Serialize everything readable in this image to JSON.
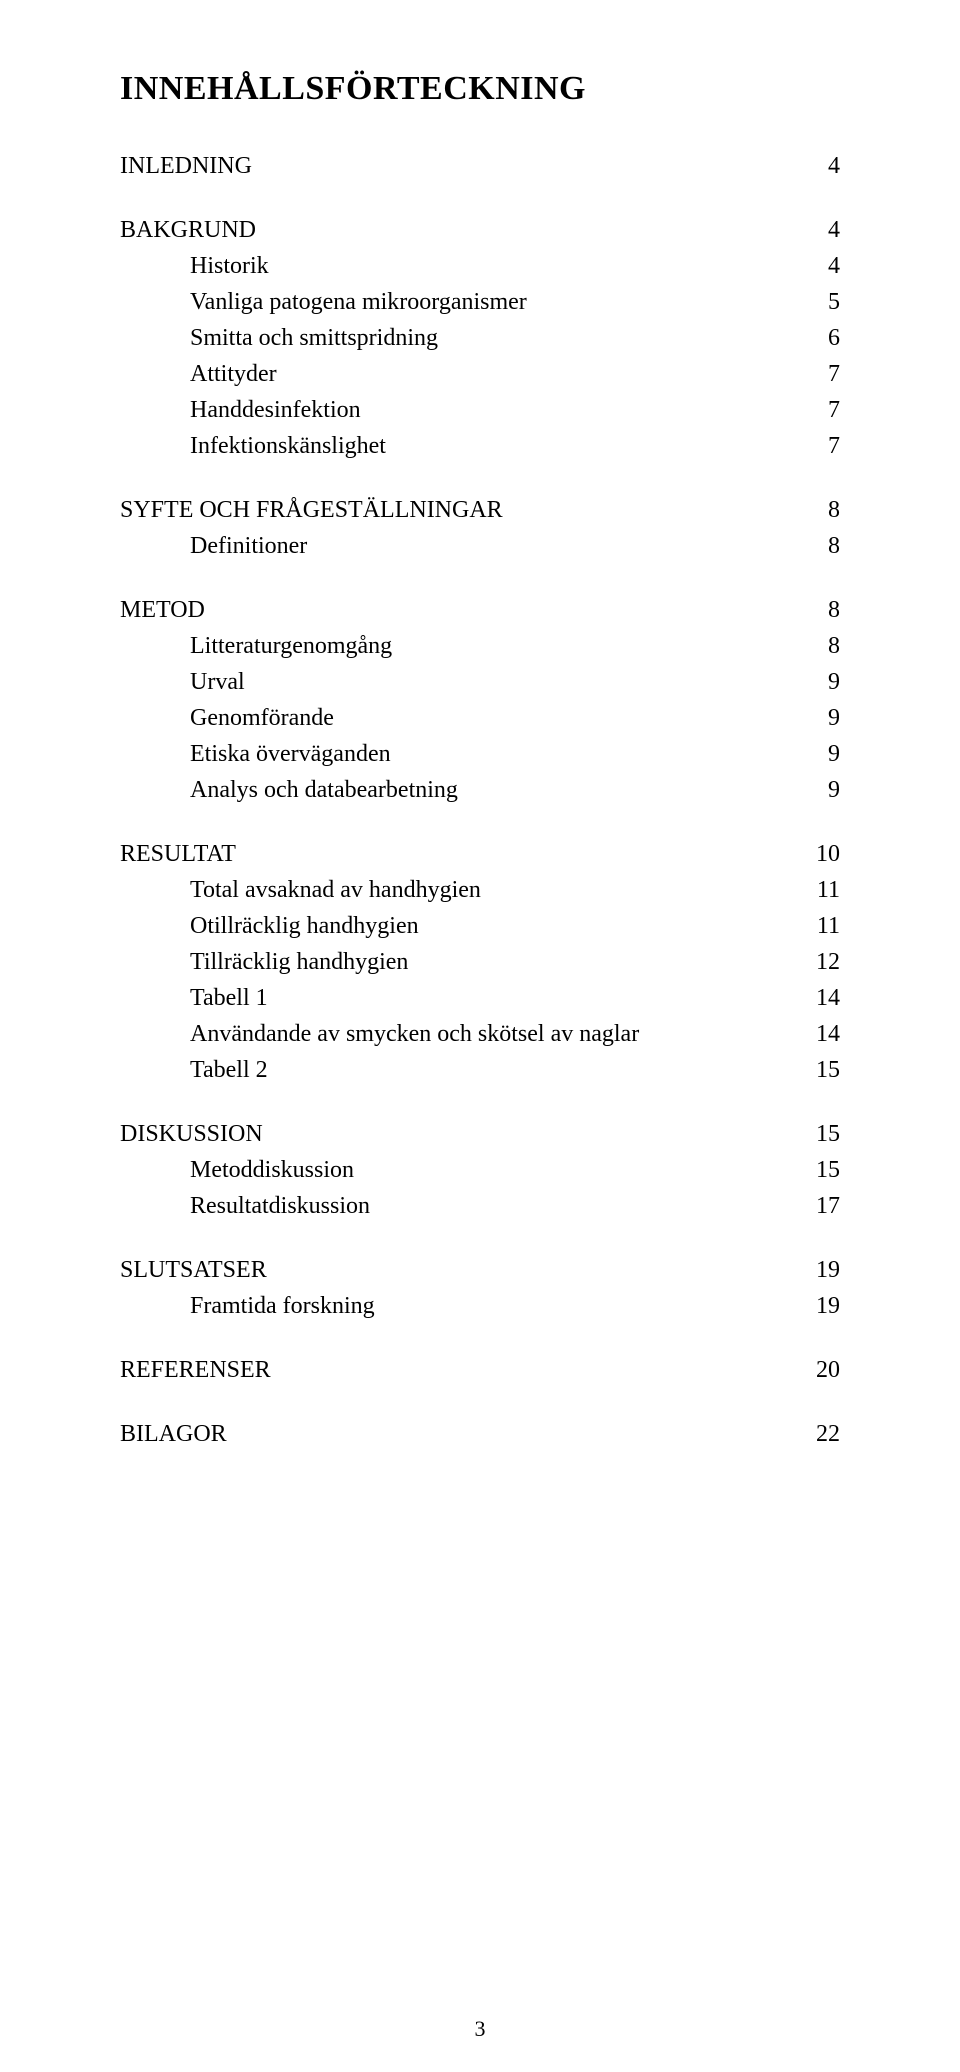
{
  "title": "INNEHÅLLSFÖRTECKNING",
  "sections": [
    {
      "head": "INLEDNING",
      "page": "4",
      "subs": []
    },
    {
      "head": "BAKGRUND",
      "page": "4",
      "subs": [
        {
          "label": "Historik",
          "page": "4"
        },
        {
          "label": "Vanliga patogena mikroorganismer",
          "page": "5"
        },
        {
          "label": "Smitta och smittspridning",
          "page": "6"
        },
        {
          "label": "Attityder",
          "page": "7"
        },
        {
          "label": "Handdesinfektion",
          "page": "7"
        },
        {
          "label": "Infektionskänslighet",
          "page": "7"
        }
      ]
    },
    {
      "head": "SYFTE OCH FRÅGESTÄLLNINGAR",
      "page": "8",
      "subs": [
        {
          "label": "Definitioner",
          "page": "8"
        }
      ]
    },
    {
      "head": "METOD",
      "page": "8",
      "subs": [
        {
          "label": "Litteraturgenomgång",
          "page": "8"
        },
        {
          "label": "Urval",
          "page": "9"
        },
        {
          "label": "Genomförande",
          "page": "9"
        },
        {
          "label": "Etiska överväganden",
          "page": "9"
        },
        {
          "label": "Analys och databearbetning",
          "page": "9"
        }
      ]
    },
    {
      "head": "RESULTAT",
      "page": "10",
      "subs": [
        {
          "label": "Total avsaknad av handhygien",
          "page": "11"
        },
        {
          "label": "Otillräcklig handhygien",
          "page": "11"
        },
        {
          "label": "Tillräcklig handhygien",
          "page": "12"
        },
        {
          "label": "Tabell 1",
          "page": "14"
        },
        {
          "label": "Användande av smycken och skötsel av naglar",
          "page": "14"
        },
        {
          "label": "Tabell 2",
          "page": "15"
        }
      ]
    },
    {
      "head": "DISKUSSION",
      "page": "15",
      "subs": [
        {
          "label": "Metoddiskussion",
          "page": "15"
        },
        {
          "label": "Resultatdiskussion",
          "page": "17"
        }
      ]
    },
    {
      "head": "SLUTSATSER",
      "page": "19",
      "subs": [
        {
          "label": "Framtida forskning",
          "page": "19"
        }
      ]
    },
    {
      "head": "REFERENSER",
      "page": "20",
      "subs": []
    },
    {
      "head": "BILAGOR",
      "page": "22",
      "subs": []
    }
  ],
  "pagenum": "3"
}
